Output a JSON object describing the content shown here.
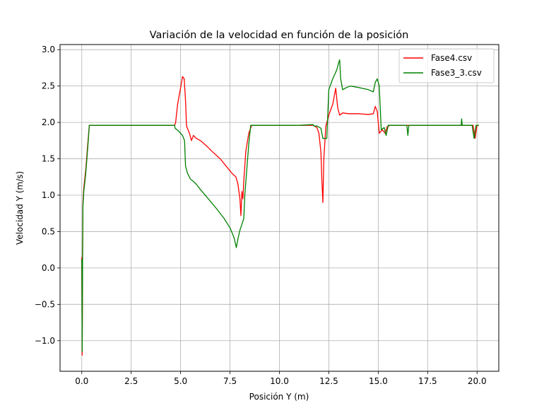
{
  "chart_data": {
    "type": "line",
    "title": "Variación de la velocidad en función de la posición",
    "xlabel": "Posición Y (m)",
    "ylabel": "Velocidad Y (m/s)",
    "xlim": [
      -1.1,
      21.1
    ],
    "ylim": [
      -1.42,
      3.07
    ],
    "xticks": [
      0.0,
      2.5,
      5.0,
      7.5,
      10.0,
      12.5,
      15.0,
      17.5,
      20.0
    ],
    "xtick_labels": [
      "0.0",
      "2.5",
      "5.0",
      "7.5",
      "10.0",
      "12.5",
      "15.0",
      "17.5",
      "20.0"
    ],
    "yticks": [
      -1.0,
      -0.5,
      0.0,
      0.5,
      1.0,
      1.5,
      2.0,
      2.5,
      3.0
    ],
    "ytick_labels": [
      "−1.0",
      "−0.5",
      "0.0",
      "0.5",
      "1.0",
      "1.5",
      "2.0",
      "2.5",
      "3.0"
    ],
    "grid": true,
    "legend_position": "upper right",
    "series": [
      {
        "name": "Fase4.csv",
        "color": "#ff0000",
        "points": [
          [
            0.0,
            0.15
          ],
          [
            0.02,
            -1.2
          ],
          [
            0.04,
            0.18
          ],
          [
            0.06,
            0.9
          ],
          [
            0.1,
            1.1
          ],
          [
            0.2,
            1.35
          ],
          [
            0.3,
            1.7
          ],
          [
            0.38,
            1.96
          ],
          [
            1.0,
            1.96
          ],
          [
            2.0,
            1.96
          ],
          [
            3.0,
            1.96
          ],
          [
            4.0,
            1.96
          ],
          [
            4.7,
            1.96
          ],
          [
            4.75,
            2.0
          ],
          [
            4.85,
            2.25
          ],
          [
            4.95,
            2.4
          ],
          [
            5.05,
            2.55
          ],
          [
            5.1,
            2.63
          ],
          [
            5.18,
            2.6
          ],
          [
            5.25,
            2.3
          ],
          [
            5.3,
            1.95
          ],
          [
            5.45,
            1.85
          ],
          [
            5.55,
            1.75
          ],
          [
            5.65,
            1.82
          ],
          [
            5.8,
            1.78
          ],
          [
            6.0,
            1.75
          ],
          [
            6.3,
            1.68
          ],
          [
            6.6,
            1.6
          ],
          [
            7.0,
            1.5
          ],
          [
            7.3,
            1.4
          ],
          [
            7.6,
            1.3
          ],
          [
            7.8,
            1.25
          ],
          [
            7.9,
            1.15
          ],
          [
            8.0,
            0.95
          ],
          [
            8.05,
            0.72
          ],
          [
            8.1,
            1.05
          ],
          [
            8.15,
            0.95
          ],
          [
            8.2,
            1.2
          ],
          [
            8.3,
            1.6
          ],
          [
            8.45,
            1.85
          ],
          [
            8.6,
            1.96
          ],
          [
            9.0,
            1.96
          ],
          [
            10.0,
            1.96
          ],
          [
            11.0,
            1.96
          ],
          [
            11.7,
            1.96
          ],
          [
            11.9,
            1.93
          ],
          [
            12.0,
            1.85
          ],
          [
            12.1,
            1.6
          ],
          [
            12.15,
            1.2
          ],
          [
            12.2,
            0.9
          ],
          [
            12.25,
            1.5
          ],
          [
            12.35,
            1.95
          ],
          [
            12.5,
            2.1
          ],
          [
            12.7,
            2.25
          ],
          [
            12.85,
            2.47
          ],
          [
            12.95,
            2.2
          ],
          [
            13.05,
            2.1
          ],
          [
            13.2,
            2.13
          ],
          [
            13.5,
            2.12
          ],
          [
            14.0,
            2.12
          ],
          [
            14.5,
            2.11
          ],
          [
            14.75,
            2.12
          ],
          [
            14.85,
            2.22
          ],
          [
            14.95,
            2.15
          ],
          [
            15.05,
            1.85
          ],
          [
            15.2,
            1.9
          ],
          [
            15.35,
            1.85
          ],
          [
            15.45,
            1.94
          ],
          [
            15.6,
            1.96
          ],
          [
            16.5,
            1.96
          ],
          [
            17.5,
            1.96
          ],
          [
            18.5,
            1.96
          ],
          [
            19.5,
            1.96
          ],
          [
            19.8,
            1.96
          ],
          [
            19.9,
            1.78
          ],
          [
            20.0,
            1.96
          ],
          [
            20.1,
            1.96
          ]
        ]
      },
      {
        "name": "Fase3_3.csv",
        "color": "#008000",
        "points": [
          [
            0.0,
            0.12
          ],
          [
            0.02,
            -1.15
          ],
          [
            0.04,
            0.12
          ],
          [
            0.06,
            0.85
          ],
          [
            0.1,
            1.05
          ],
          [
            0.2,
            1.3
          ],
          [
            0.3,
            1.65
          ],
          [
            0.38,
            1.96
          ],
          [
            1.0,
            1.96
          ],
          [
            2.0,
            1.96
          ],
          [
            3.0,
            1.96
          ],
          [
            4.0,
            1.96
          ],
          [
            4.7,
            1.96
          ],
          [
            4.72,
            1.92
          ],
          [
            4.9,
            1.88
          ],
          [
            5.1,
            1.82
          ],
          [
            5.2,
            1.75
          ],
          [
            5.25,
            1.4
          ],
          [
            5.35,
            1.3
          ],
          [
            5.45,
            1.25
          ],
          [
            5.5,
            1.22
          ],
          [
            5.6,
            1.2
          ],
          [
            5.8,
            1.15
          ],
          [
            6.0,
            1.08
          ],
          [
            6.4,
            0.95
          ],
          [
            6.8,
            0.82
          ],
          [
            7.2,
            0.68
          ],
          [
            7.5,
            0.55
          ],
          [
            7.7,
            0.42
          ],
          [
            7.82,
            0.28
          ],
          [
            7.9,
            0.4
          ],
          [
            8.0,
            0.52
          ],
          [
            8.1,
            0.6
          ],
          [
            8.2,
            0.68
          ],
          [
            8.25,
            1.0
          ],
          [
            8.35,
            1.35
          ],
          [
            8.45,
            1.7
          ],
          [
            8.55,
            1.96
          ],
          [
            9.0,
            1.96
          ],
          [
            10.0,
            1.96
          ],
          [
            11.0,
            1.96
          ],
          [
            11.7,
            1.97
          ],
          [
            11.75,
            1.95
          ],
          [
            11.9,
            1.95
          ],
          [
            12.1,
            1.92
          ],
          [
            12.2,
            1.78
          ],
          [
            12.4,
            1.78
          ],
          [
            12.5,
            2.45
          ],
          [
            12.7,
            2.6
          ],
          [
            12.9,
            2.72
          ],
          [
            13.0,
            2.82
          ],
          [
            13.05,
            2.86
          ],
          [
            13.1,
            2.6
          ],
          [
            13.2,
            2.45
          ],
          [
            13.4,
            2.48
          ],
          [
            13.6,
            2.5
          ],
          [
            14.0,
            2.48
          ],
          [
            14.5,
            2.45
          ],
          [
            14.75,
            2.42
          ],
          [
            14.85,
            2.55
          ],
          [
            14.95,
            2.6
          ],
          [
            15.05,
            2.5
          ],
          [
            15.15,
            1.9
          ],
          [
            15.3,
            1.93
          ],
          [
            15.4,
            1.82
          ],
          [
            15.5,
            1.96
          ],
          [
            16.0,
            1.96
          ],
          [
            16.45,
            1.96
          ],
          [
            16.5,
            1.82
          ],
          [
            16.55,
            1.96
          ],
          [
            17.0,
            1.96
          ],
          [
            18.0,
            1.96
          ],
          [
            19.0,
            1.96
          ],
          [
            19.2,
            1.96
          ],
          [
            19.22,
            2.05
          ],
          [
            19.25,
            1.96
          ],
          [
            19.5,
            1.96
          ],
          [
            19.75,
            1.96
          ],
          [
            19.85,
            1.78
          ],
          [
            19.95,
            1.96
          ],
          [
            20.1,
            1.96
          ]
        ]
      }
    ]
  }
}
